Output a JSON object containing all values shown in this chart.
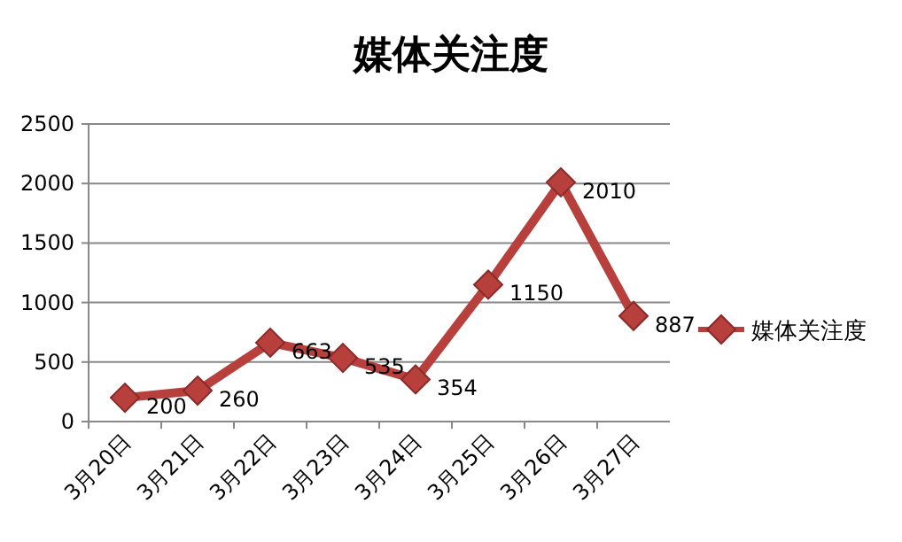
{
  "chart_data": {
    "type": "line",
    "title": "媒体关注度",
    "categories": [
      "3月20日",
      "3月21日",
      "3月22日",
      "3月23日",
      "3月24日",
      "3月25日",
      "3月26日",
      "3月27日"
    ],
    "series": [
      {
        "name": "媒体关注度",
        "color": "#b8403c",
        "values": [
          200,
          260,
          663,
          535,
          354,
          1150,
          2010,
          887
        ]
      }
    ],
    "ylim": [
      0,
      2500
    ],
    "yticks": [
      0,
      500,
      1000,
      1500,
      2000,
      2500
    ],
    "grid": "y",
    "legend": "right",
    "marker": "diamond",
    "line_style": "solid",
    "data_labels": true
  }
}
